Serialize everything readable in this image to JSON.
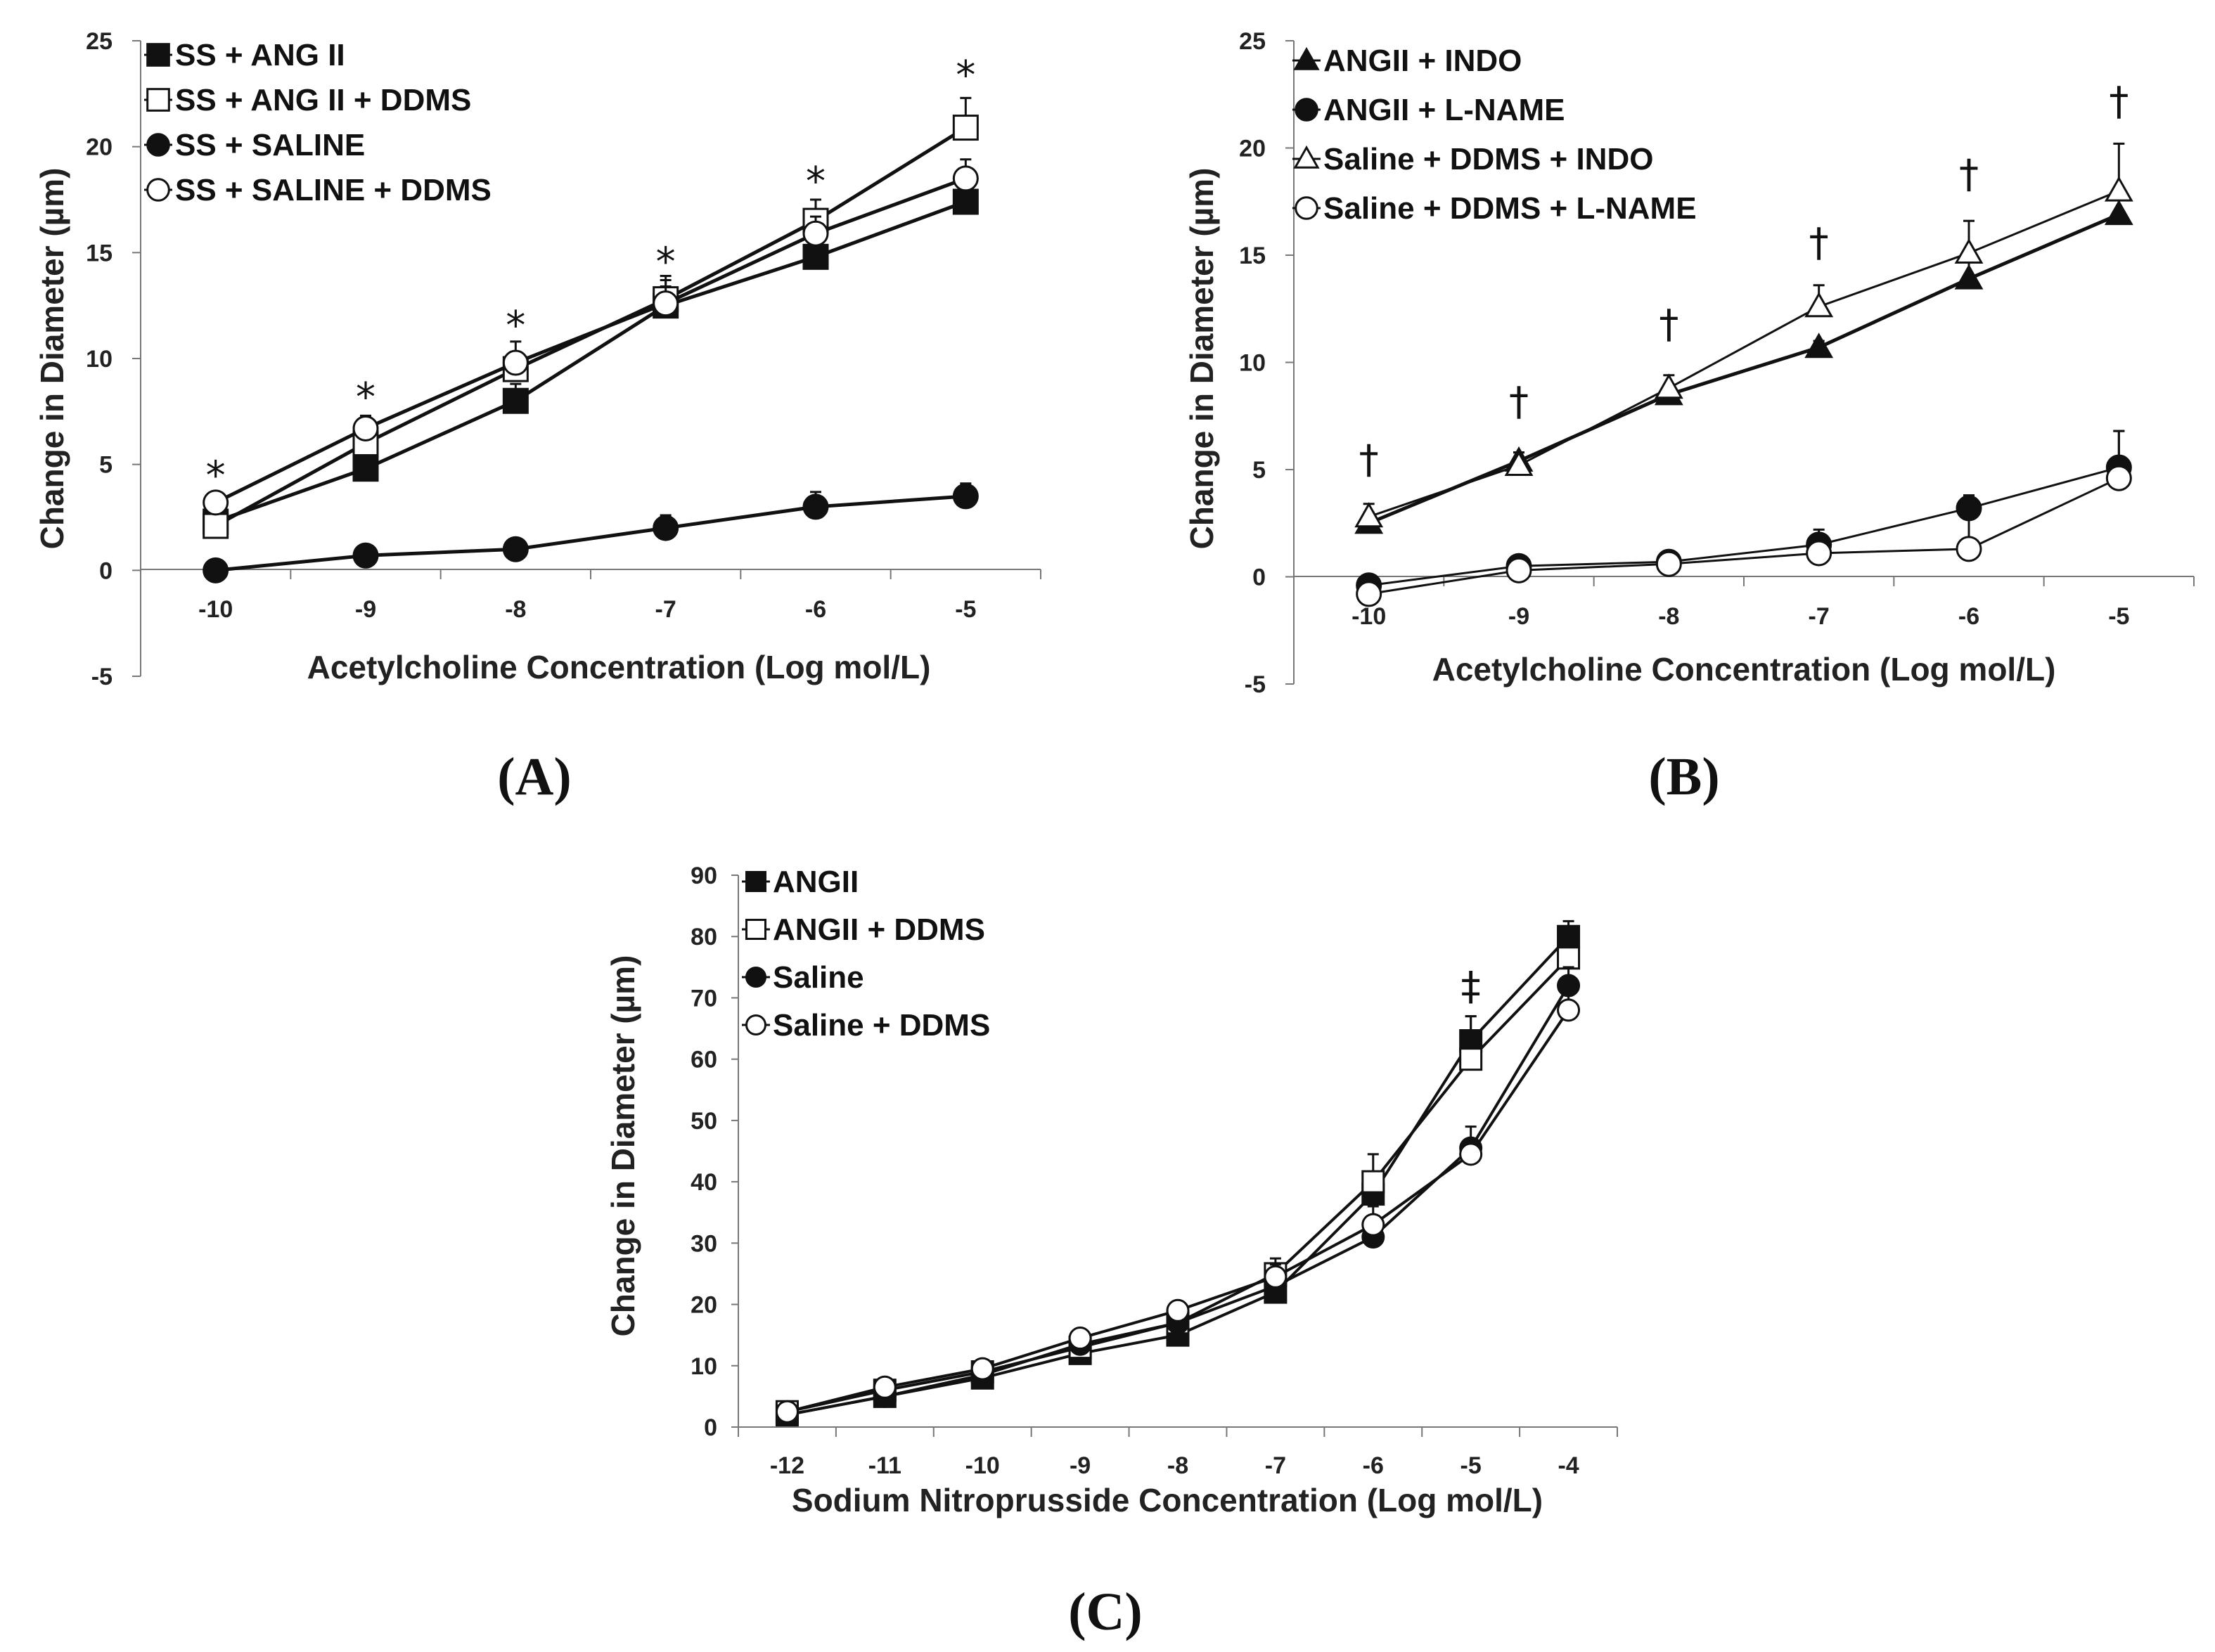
{
  "chart_data": [
    {
      "id": "A",
      "type": "line",
      "panel_label": "(A)",
      "title": "",
      "xlabel": "Acetylcholine Concentration (Log mol/L)",
      "ylabel": "Change in Diameter (µm)",
      "xlim": [
        -10.5,
        -4.5
      ],
      "ylim": [
        -5,
        25
      ],
      "yticks": [
        -5,
        0,
        5,
        10,
        15,
        20,
        25
      ],
      "xticks": [
        -10,
        -9,
        -8,
        -7,
        -6,
        -5
      ],
      "x": [
        -10,
        -9,
        -8,
        -7,
        -6,
        -5
      ],
      "legend_position": "top-left",
      "series": [
        {
          "name": "SS + ANG II",
          "marker": "square",
          "fill": "#111111",
          "line_width": 5,
          "values": [
            2.3,
            4.8,
            8.0,
            12.5,
            14.8,
            17.4
          ],
          "errors": [
            0.4,
            0.4,
            0.8,
            0.9,
            0.6,
            0.9
          ]
        },
        {
          "name": "SS + ANG II + DDMS",
          "marker": "square",
          "fill": "#ffffff",
          "line_width": 5,
          "values": [
            2.1,
            6.0,
            9.5,
            12.8,
            16.5,
            20.9
          ],
          "errors": [
            0.4,
            0.6,
            0.8,
            0.9,
            1.0,
            1.4
          ]
        },
        {
          "name": "SS + SALINE",
          "marker": "circle",
          "fill": "#111111",
          "line_width": 5,
          "values": [
            0.0,
            0.7,
            1.0,
            2.0,
            3.0,
            3.5
          ],
          "errors": [
            0.2,
            0.2,
            0.3,
            0.6,
            0.7,
            0.6
          ]
        },
        {
          "name": "SS + SALINE + DDMS",
          "marker": "circle",
          "fill": "#ffffff",
          "line_width": 5,
          "values": [
            3.2,
            6.7,
            9.8,
            12.6,
            15.9,
            18.5
          ],
          "errors": [
            0.4,
            0.6,
            1.0,
            1.3,
            0.8,
            0.9
          ]
        }
      ],
      "annotations": [
        {
          "text": "*",
          "x": -10,
          "y": 4.5
        },
        {
          "text": "*",
          "x": -9,
          "y": 8.2
        },
        {
          "text": "*",
          "x": -8,
          "y": 11.6
        },
        {
          "text": "*",
          "x": -7,
          "y": 14.6
        },
        {
          "text": "*",
          "x": -6,
          "y": 18.4
        },
        {
          "text": "*",
          "x": -5,
          "y": 23.4
        }
      ]
    },
    {
      "id": "B",
      "type": "line",
      "panel_label": "(B)",
      "title": "",
      "xlabel": "Acetylcholine Concentration (Log mol/L)",
      "ylabel": "Change in Diameter (µm)",
      "xlim": [
        -10.5,
        -4.5
      ],
      "ylim": [
        -5,
        25
      ],
      "yticks": [
        -5,
        0,
        5,
        10,
        15,
        20,
        25
      ],
      "xticks": [
        -10,
        -9,
        -8,
        -7,
        -6,
        -5
      ],
      "x": [
        -10,
        -9,
        -8,
        -7,
        -6,
        -5
      ],
      "legend_position": "top-left",
      "series": [
        {
          "name": "ANGII + INDO",
          "marker": "triangle",
          "fill": "#111111",
          "line_width": 5,
          "values": [
            2.5,
            5.4,
            8.5,
            10.7,
            13.9,
            16.9
          ],
          "errors": [
            0.5,
            0.4,
            0.4,
            0.3,
            0.9,
            0.9
          ]
        },
        {
          "name": "ANGII + L-NAME",
          "marker": "circle",
          "fill": "#111111",
          "line_width": 3,
          "values": [
            -0.4,
            0.5,
            0.7,
            1.5,
            3.2,
            5.1
          ],
          "errors": [
            0.3,
            0.4,
            0.3,
            0.5,
            0.6,
            1.7
          ]
        },
        {
          "name": "Saline + DDMS + INDO",
          "marker": "triangle",
          "fill": "#ffffff",
          "line_width": 3,
          "values": [
            2.8,
            5.2,
            8.8,
            12.6,
            15.1,
            18.0
          ],
          "errors": [
            0.6,
            0.6,
            0.6,
            1.0,
            1.5,
            2.2
          ]
        },
        {
          "name": "Saline + DDMS + L-NAME",
          "marker": "circle",
          "fill": "#ffffff",
          "line_width": 3,
          "values": [
            -0.8,
            0.3,
            0.6,
            1.1,
            1.3,
            4.6
          ],
          "errors": [
            0.4,
            0.6,
            0.3,
            1.1,
            1.6,
            2.2
          ]
        }
      ],
      "annotations": [
        {
          "text": "†",
          "x": -10,
          "y": 5.5
        },
        {
          "text": "†",
          "x": -9,
          "y": 8.2
        },
        {
          "text": "†",
          "x": -8,
          "y": 11.8
        },
        {
          "text": "†",
          "x": -7,
          "y": 15.6
        },
        {
          "text": "†",
          "x": -6,
          "y": 18.8
        },
        {
          "text": "†",
          "x": -5,
          "y": 22.2
        }
      ]
    },
    {
      "id": "C",
      "type": "line",
      "panel_label": "(C)",
      "title": "",
      "xlabel": "Sodium Nitroprusside Concentration (Log mol/L)",
      "ylabel": "Change in Diameter (µm)",
      "xlim": [
        -12.5,
        -3.5
      ],
      "ylim": [
        0,
        90
      ],
      "yticks": [
        0,
        10,
        20,
        30,
        40,
        50,
        60,
        70,
        80,
        90
      ],
      "xticks": [
        -12,
        -11,
        -10,
        -9,
        -8,
        -7,
        -6,
        -5,
        -4
      ],
      "x": [
        -12,
        -11,
        -10,
        -9,
        -8,
        -7,
        -6,
        -5,
        -4
      ],
      "legend_position": "top-left",
      "series": [
        {
          "name": "ANGII",
          "marker": "square",
          "fill": "#111111",
          "line_width": 4,
          "values": [
            2,
            5,
            8,
            12,
            15,
            22,
            38,
            63,
            80
          ],
          "errors": [
            0.5,
            0.6,
            0.8,
            1.2,
            1.0,
            1.5,
            2.5,
            4.0,
            2.5
          ]
        },
        {
          "name": "ANGII + DDMS",
          "marker": "square",
          "fill": "#ffffff",
          "line_width": 4,
          "values": [
            2.5,
            6,
            9,
            13,
            17,
            25,
            40,
            60,
            76.5
          ],
          "errors": [
            0.5,
            0.8,
            1.0,
            1.2,
            1.5,
            2.5,
            4.5,
            7.0,
            3.0
          ]
        },
        {
          "name": "Saline",
          "marker": "circle",
          "fill": "#111111",
          "line_width": 4,
          "values": [
            2,
            5,
            8.5,
            13.5,
            17,
            23,
            31,
            45.5,
            72
          ],
          "errors": [
            0.5,
            0.6,
            0.8,
            1.2,
            1.2,
            2.5,
            3.0,
            3.5,
            3.0
          ]
        },
        {
          "name": "Saline + DDMS",
          "marker": "circle",
          "fill": "#ffffff",
          "line_width": 4,
          "values": [
            2.5,
            6.5,
            9.5,
            14.5,
            19,
            24.5,
            33,
            44.5,
            68
          ],
          "errors": [
            0.5,
            0.8,
            0.8,
            1.0,
            1.2,
            2.0,
            3.0,
            2.5,
            4.0
          ]
        }
      ],
      "annotations": [
        {
          "text": "‡",
          "x": -5,
          "y": 72
        }
      ]
    }
  ]
}
